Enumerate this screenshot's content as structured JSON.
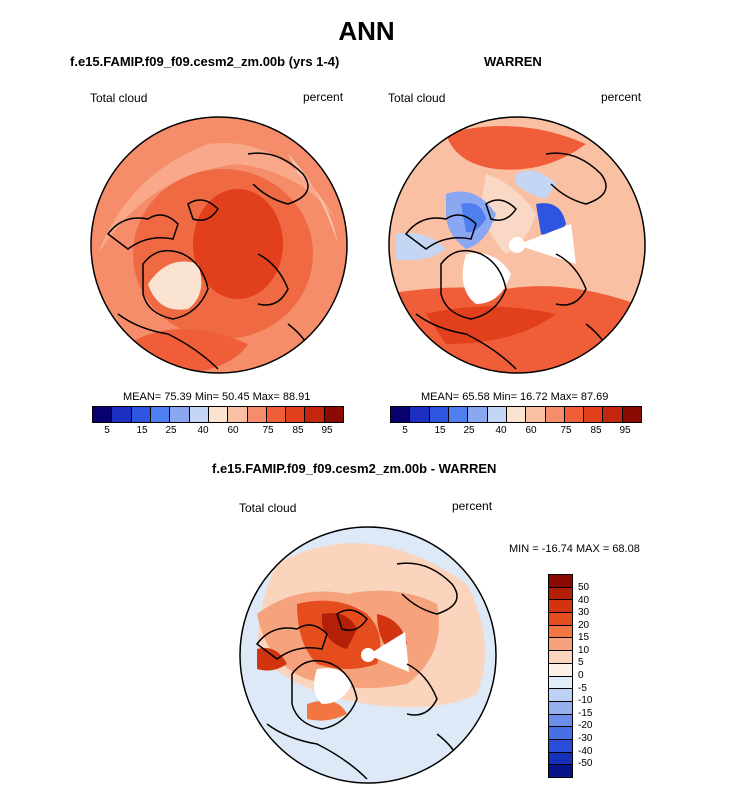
{
  "main_title": "ANN",
  "colors": {
    "scale_abs": [
      "#08006e",
      "#1c2fc0",
      "#2e55e0",
      "#4f7fef",
      "#8aa8f2",
      "#c5d6f5",
      "#fbe3d2",
      "#f9c0a3",
      "#f58c6a",
      "#ef5d39",
      "#e2401c",
      "#c2260f",
      "#8c0a04"
    ],
    "scale_diff": [
      "#8c0a04",
      "#b41f08",
      "#d2340f",
      "#e54d1f",
      "#f27542",
      "#f6a27c",
      "#fad4bd",
      "#fdf0e6",
      "#e2edf8",
      "#bcd1f3",
      "#94b0ee",
      "#6b8eeb",
      "#4870e6",
      "#2b4ed8",
      "#1630b8",
      "#07148a"
    ],
    "land": "#000000",
    "missing": "#ffffff"
  },
  "chart_data": [
    {
      "type": "heatmap",
      "projection": "polar stereographic (north)",
      "title": "f.e15.FAMIP.f09_f09.cesm2_zm.00b (yrs 1-4)",
      "left_label": "Total cloud",
      "right_label": "percent",
      "stats": "MEAN= 75.39  Min= 50.45  Max= 88.91",
      "stats_values": {
        "mean": 75.39,
        "min": 50.45,
        "max": 88.91
      },
      "colorbar_ticks": [
        "5",
        "15",
        "25",
        "40",
        "60",
        "75",
        "85",
        "95"
      ]
    },
    {
      "type": "heatmap",
      "projection": "polar stereographic (north)",
      "title": "WARREN",
      "left_label": "Total cloud",
      "right_label": "percent",
      "stats": "MEAN= 65.58  Min= 16.72  Max= 87.69",
      "stats_values": {
        "mean": 65.58,
        "min": 16.72,
        "max": 87.69
      },
      "colorbar_ticks": [
        "5",
        "15",
        "25",
        "40",
        "60",
        "75",
        "85",
        "95"
      ]
    },
    {
      "type": "heatmap",
      "projection": "polar stereographic (north)",
      "title": "f.e15.FAMIP.f09_f09.cesm2_zm.00b - WARREN",
      "left_label": "Total cloud",
      "right_label": "percent",
      "stats": "MIN = -16.74 MAX =  68.08",
      "stats_values": {
        "min": -16.74,
        "max": 68.08
      },
      "colorbar_ticks": [
        "50",
        "40",
        "30",
        "20",
        "15",
        "10",
        "5",
        "0",
        "-5",
        "-10",
        "-15",
        "-20",
        "-30",
        "-40",
        "-50"
      ]
    }
  ]
}
